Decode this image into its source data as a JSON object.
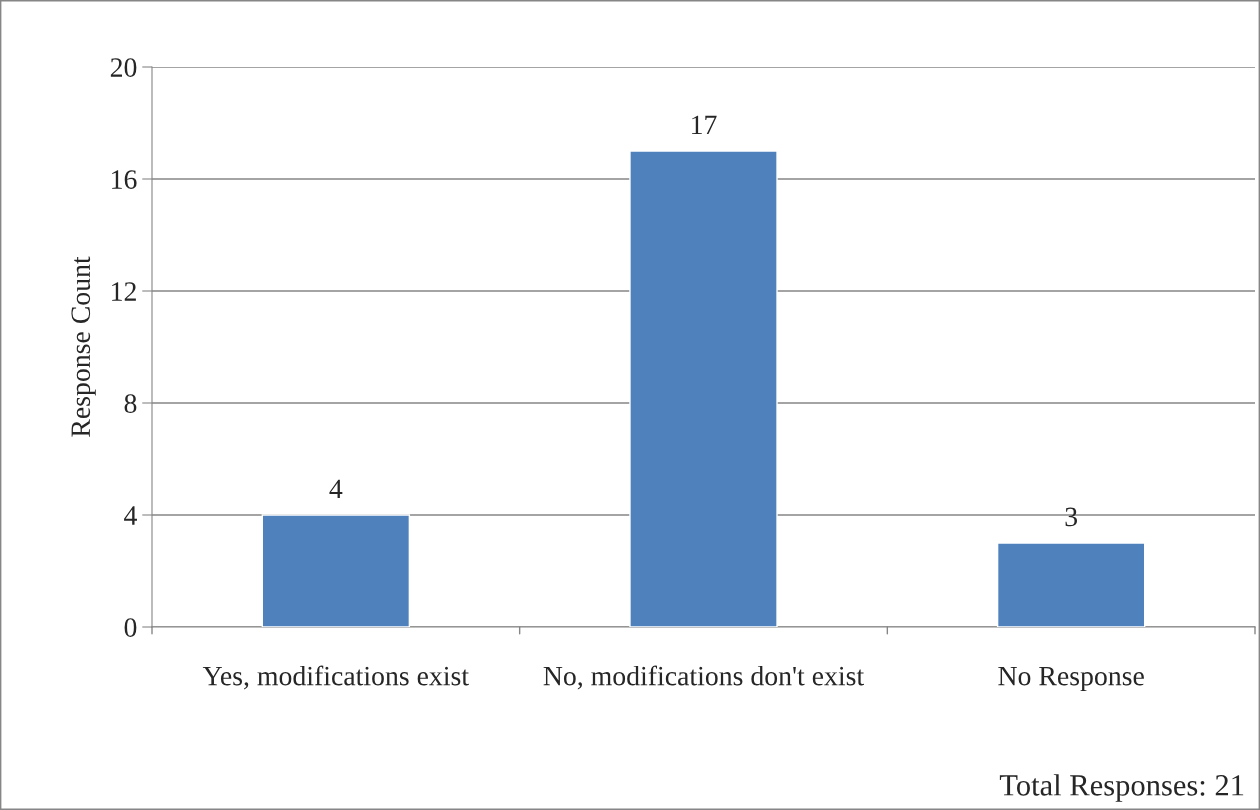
{
  "chart_data": {
    "type": "bar",
    "ylabel": "Response Count",
    "categories": [
      "Yes, modifications exist",
      "No, modifications don't exist",
      "No Response"
    ],
    "values": [
      4,
      17,
      3
    ],
    "color": "#4f81bd",
    "ylim": [
      0,
      20
    ],
    "yticks": [
      0,
      4,
      8,
      12,
      16,
      20
    ],
    "grid": "y",
    "data_labels": true,
    "annotations": [
      "Total Responses: 21"
    ]
  }
}
